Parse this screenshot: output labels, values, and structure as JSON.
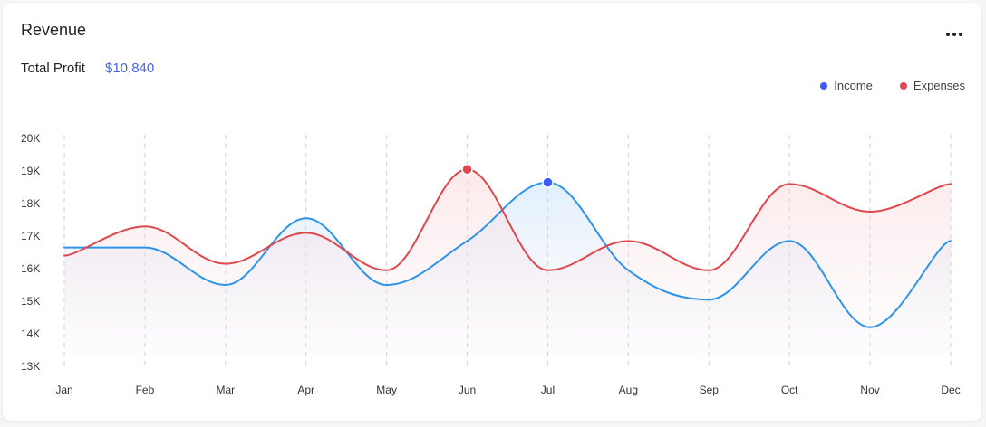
{
  "header": {
    "title": "Revenue",
    "total_profit_label": "Total Profit",
    "total_profit_value": "$10,840",
    "menu_icon": "more-horizontal-icon"
  },
  "legend": [
    {
      "name": "Income",
      "color": "#3b5bff"
    },
    {
      "name": "Expenses",
      "color": "#e0474c"
    }
  ],
  "chart_data": {
    "type": "line",
    "title": "Revenue",
    "categories": [
      "Jan",
      "Feb",
      "Mar",
      "Apr",
      "May",
      "Jun",
      "Jul",
      "Aug",
      "Sep",
      "Oct",
      "Nov",
      "Dec"
    ],
    "series": [
      {
        "name": "Income",
        "color": "#2e94e8",
        "marker_color": "#3b5bff",
        "values": [
          16650,
          16650,
          15500,
          17550,
          15500,
          16850,
          18650,
          15950,
          15050,
          16850,
          14200,
          16850
        ]
      },
      {
        "name": "Expenses",
        "color": "#e0474c",
        "marker_color": "#e0474c",
        "values": [
          16400,
          17300,
          16150,
          17100,
          15950,
          19050,
          15950,
          16850,
          15950,
          18600,
          17750,
          18600
        ]
      }
    ],
    "highlights": [
      {
        "series": "Expenses",
        "category": "Jun"
      },
      {
        "series": "Income",
        "category": "Jul"
      }
    ],
    "yticks": [
      "13K",
      "14K",
      "15K",
      "16K",
      "17K",
      "18K",
      "19K",
      "20K"
    ],
    "ylim": [
      13000,
      20000
    ],
    "xlabel": "",
    "ylabel": "",
    "grid": "vertical-dashed",
    "legend_position": "top-right"
  }
}
